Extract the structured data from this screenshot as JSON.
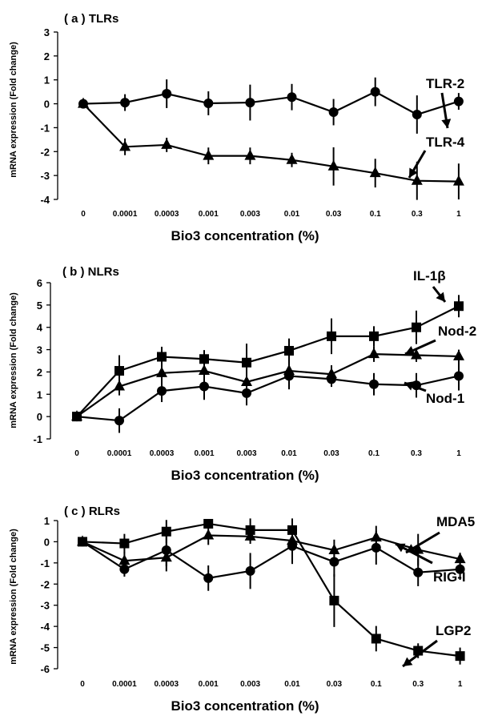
{
  "chart_data": [
    {
      "type": "line",
      "title": "( a ) TLRs",
      "xlabel": "Bio3 concentration (%)",
      "ylabel": "mRNA expression  (Fold change)",
      "categories": [
        "0",
        "0.0001",
        "0.0003",
        "0.001",
        "0.003",
        "0.01",
        "0.03",
        "0.1",
        "0.3",
        "1"
      ],
      "ylim": [
        -4,
        3
      ],
      "yticks": [
        "3",
        "2",
        "1",
        "0",
        "-1",
        "-2",
        "-3",
        "-4"
      ],
      "grid": false,
      "series": [
        {
          "name": "TLR-2",
          "marker": "circle",
          "values": [
            0,
            0.05,
            0.42,
            0.02,
            0.05,
            0.28,
            -0.35,
            0.5,
            -0.45,
            0.1
          ],
          "errors": [
            0,
            0.35,
            0.6,
            0.5,
            0.75,
            0.55,
            0.55,
            0.6,
            0.8,
            0.35
          ]
        },
        {
          "name": "TLR-4",
          "marker": "triangle",
          "values": [
            0,
            -1.8,
            -1.72,
            -2.18,
            -2.18,
            -2.35,
            -2.62,
            -2.9,
            -3.22,
            -3.25
          ],
          "errors": [
            0,
            0.35,
            0.3,
            0.35,
            0.35,
            0.3,
            0.8,
            0.6,
            0.8,
            0.75
          ]
        }
      ]
    },
    {
      "type": "line",
      "title": "( b ) NLRs",
      "xlabel": "Bio3 concentration (%)",
      "ylabel": "mRNA expression  (Fold change)",
      "categories": [
        "0",
        "0.0001",
        "0.0003",
        "0.001",
        "0.003",
        "0.01",
        "0.03",
        "0.1",
        "0.3",
        "1"
      ],
      "ylim": [
        -1,
        6
      ],
      "yticks": [
        "6",
        "5",
        "4",
        "3",
        "2",
        "1",
        "0",
        "-1"
      ],
      "grid": false,
      "series": [
        {
          "name": "IL-1β",
          "marker": "square",
          "values": [
            0,
            2.05,
            2.68,
            2.58,
            2.42,
            2.95,
            3.6,
            3.6,
            4.0,
            4.95
          ],
          "errors": [
            0,
            0.7,
            0.45,
            0.4,
            0.85,
            0.55,
            0.8,
            0.45,
            0.75,
            0.5
          ]
        },
        {
          "name": "Nod-2",
          "marker": "triangle",
          "values": [
            0,
            1.35,
            1.95,
            2.05,
            1.55,
            2.05,
            1.9,
            2.8,
            2.75,
            2.7
          ],
          "errors": [
            0,
            0.4,
            0.35,
            0.3,
            0.4,
            0.4,
            0.4,
            0.35,
            0.3,
            0.3
          ]
        },
        {
          "name": "Nod-1",
          "marker": "circle",
          "values": [
            0,
            -0.18,
            1.15,
            1.35,
            1.05,
            1.82,
            1.68,
            1.45,
            1.4,
            1.82
          ],
          "errors": [
            0,
            0.55,
            0.5,
            0.6,
            0.55,
            0.6,
            0.35,
            0.5,
            0.55,
            0.65
          ]
        }
      ]
    },
    {
      "type": "line",
      "title": "( c ) RLRs",
      "xlabel": "Bio3 concentration (%)",
      "ylabel": "mRNA expression  (Fold change)",
      "categories": [
        "0",
        "0.0001",
        "0.0003",
        "0.001",
        "0.003",
        "0.01",
        "0.03",
        "0.1",
        "0.3",
        "1"
      ],
      "ylim": [
        -6,
        1
      ],
      "yticks": [
        "1",
        "0",
        "-1",
        "-2",
        "-3",
        "-4",
        "-5",
        "-6"
      ],
      "grid": false,
      "series": [
        {
          "name": "MDA5",
          "marker": "triangle",
          "values": [
            0,
            -0.9,
            -0.75,
            0.3,
            0.25,
            0.05,
            -0.4,
            0.2,
            -0.38,
            -0.82
          ],
          "errors": [
            0,
            0.4,
            0.65,
            0.45,
            0.35,
            0.55,
            0.5,
            0.55,
            0.75,
            0.3
          ]
        },
        {
          "name": "RIG-I",
          "marker": "circle",
          "values": [
            0,
            -1.3,
            -0.4,
            -1.72,
            -1.38,
            -0.2,
            -0.95,
            -0.28,
            -1.45,
            -1.3
          ],
          "errors": [
            0,
            0.35,
            0.75,
            0.6,
            0.85,
            0.85,
            0.7,
            0.8,
            0.65,
            0.5
          ]
        },
        {
          "name": "LGP2",
          "marker": "square",
          "values": [
            0,
            -0.08,
            0.48,
            0.85,
            0.55,
            0.55,
            -2.78,
            -4.58,
            -5.15,
            -5.4
          ],
          "errors": [
            0,
            0.45,
            0.55,
            0.2,
            0.55,
            0.55,
            1.25,
            0.6,
            0.35,
            0.4
          ]
        }
      ]
    }
  ]
}
